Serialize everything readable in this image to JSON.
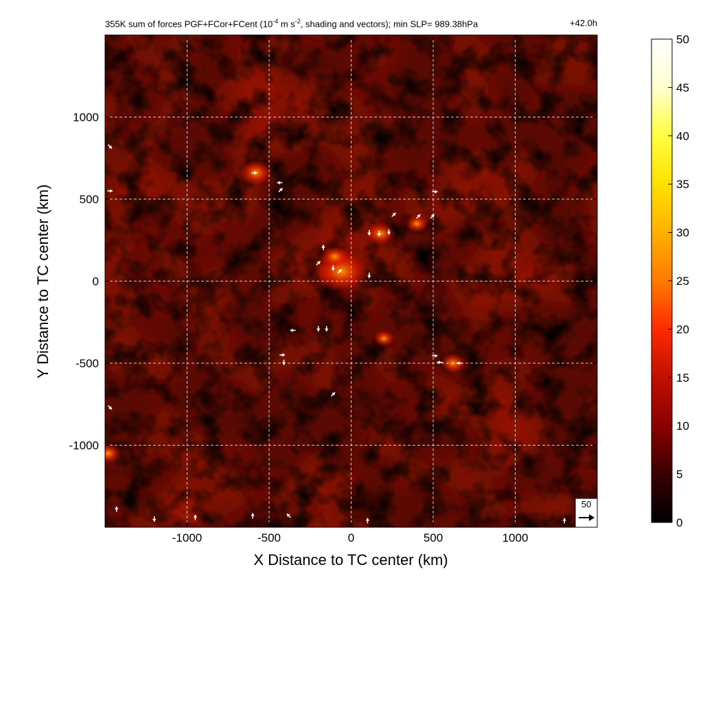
{
  "header": {
    "title_prefix": "355K sum of forces PGF+FCor+FCent (10",
    "title_sup1": "-4",
    "title_mid": " m s",
    "title_sup2": "-2",
    "title_suffix": ", shading and vectors); min SLP= 989.38hPa",
    "time": "+42.0h"
  },
  "chart_data": {
    "type": "heatmap",
    "xlabel": "X Distance to TC center (km)",
    "ylabel": "Y Distance to TC center (km)",
    "xlim": [
      -1500,
      1500
    ],
    "ylim": [
      -1500,
      1500
    ],
    "xticks": [
      -1000,
      -500,
      0,
      500,
      1000
    ],
    "yticks": [
      -1000,
      -500,
      0,
      500,
      1000
    ],
    "grid": true,
    "colorbar": {
      "range": [
        0,
        50
      ],
      "ticks": [
        0,
        5,
        10,
        15,
        20,
        25,
        30,
        35,
        40,
        45,
        50
      ],
      "colormap": [
        "#000000",
        "#3a0000",
        "#8b0000",
        "#c01000",
        "#ff2a00",
        "#ff7a00",
        "#ffb000",
        "#ffe000",
        "#ffff40",
        "#ffffd0",
        "#ffffff"
      ]
    },
    "reference_vector": {
      "value": "50"
    },
    "hotspots": [
      {
        "x": -60,
        "y": 60,
        "v": 28
      },
      {
        "x": -580,
        "y": 660,
        "v": 15
      },
      {
        "x": 180,
        "y": 290,
        "v": 14
      },
      {
        "x": 620,
        "y": -500,
        "v": 12
      },
      {
        "x": -100,
        "y": 150,
        "v": 13
      },
      {
        "x": 400,
        "y": 350,
        "v": 10
      },
      {
        "x": -1480,
        "y": -1050,
        "v": 12
      },
      {
        "x": 200,
        "y": -350,
        "v": 9
      }
    ],
    "vectors": [
      {
        "x": 170,
        "y": 290,
        "u": 0,
        "v": -1
      },
      {
        "x": 110,
        "y": 295,
        "u": 0,
        "v": -1
      },
      {
        "x": 230,
        "y": 300,
        "u": 0,
        "v": -1
      },
      {
        "x": 260,
        "y": 405,
        "u": 1,
        "v": 1
      },
      {
        "x": 410,
        "y": 395,
        "u": 1,
        "v": 1
      },
      {
        "x": 495,
        "y": 395,
        "u": 1,
        "v": 1
      },
      {
        "x": 510,
        "y": 545,
        "u": 1,
        "v": 0
      },
      {
        "x": -435,
        "y": 600,
        "u": -1,
        "v": 0
      },
      {
        "x": -430,
        "y": 555,
        "u": 1,
        "v": 1
      },
      {
        "x": -590,
        "y": 660,
        "u": 1,
        "v": 0
      },
      {
        "x": -170,
        "y": 205,
        "u": 0,
        "v": 1
      },
      {
        "x": -200,
        "y": 110,
        "u": 1,
        "v": 1
      },
      {
        "x": -110,
        "y": 80,
        "u": 0,
        "v": -1
      },
      {
        "x": -70,
        "y": 60,
        "u": 1,
        "v": 1
      },
      {
        "x": 110,
        "y": 35,
        "u": 0,
        "v": -1
      },
      {
        "x": -200,
        "y": -290,
        "u": 0,
        "v": -1
      },
      {
        "x": -150,
        "y": -290,
        "u": 0,
        "v": -1
      },
      {
        "x": -355,
        "y": -300,
        "u": -1,
        "v": 0
      },
      {
        "x": -420,
        "y": -450,
        "u": 1,
        "v": 0
      },
      {
        "x": -410,
        "y": -495,
        "u": 0,
        "v": -1
      },
      {
        "x": 510,
        "y": -455,
        "u": 1,
        "v": 0
      },
      {
        "x": 540,
        "y": -495,
        "u": -1,
        "v": 0
      },
      {
        "x": 660,
        "y": -500,
        "u": -1,
        "v": 0
      },
      {
        "x": -110,
        "y": -690,
        "u": 1,
        "v": 1
      },
      {
        "x": -1470,
        "y": 550,
        "u": 1,
        "v": 0
      },
      {
        "x": -1470,
        "y": 820,
        "u": 1,
        "v": -1
      },
      {
        "x": -1470,
        "y": -770,
        "u": 1,
        "v": -1
      },
      {
        "x": -1430,
        "y": -1390,
        "u": 0,
        "v": 1
      },
      {
        "x": -1200,
        "y": -1450,
        "u": 0,
        "v": -1
      },
      {
        "x": -950,
        "y": -1440,
        "u": 0,
        "v": 1
      },
      {
        "x": -600,
        "y": -1430,
        "u": 0,
        "v": 1
      },
      {
        "x": -380,
        "y": -1430,
        "u": -1,
        "v": 1
      },
      {
        "x": 100,
        "y": -1460,
        "u": 0,
        "v": 1
      },
      {
        "x": 1300,
        "y": -1460,
        "u": 0,
        "v": 1
      }
    ]
  }
}
